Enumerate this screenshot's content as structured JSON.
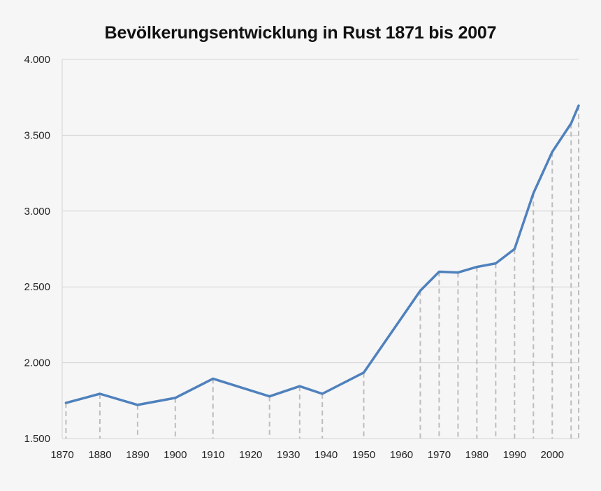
{
  "chart_data": {
    "type": "line",
    "title": "Bevölkerungsentwicklung in Rust 1871 bis 2007",
    "xlabel": "",
    "ylabel": "",
    "xlim": [
      1870,
      2007
    ],
    "ylim": [
      1500,
      4000
    ],
    "x_ticks": [
      1870,
      1880,
      1890,
      1900,
      1910,
      1920,
      1930,
      1940,
      1950,
      1960,
      1970,
      1980,
      1990,
      2000
    ],
    "x_tick_labels": [
      "1870",
      "1880",
      "1890",
      "1900",
      "1910",
      "1920",
      "1930",
      "1940",
      "1950",
      "1960",
      "1970",
      "1980",
      "1990",
      "2000"
    ],
    "y_ticks": [
      1500,
      2000,
      2500,
      3000,
      3500,
      4000
    ],
    "y_tick_labels": [
      "1.500",
      "2.000",
      "2.500",
      "3.000",
      "3.500",
      "4.000"
    ],
    "grid": "horizontal",
    "drop_lines": true,
    "series": [
      {
        "color": "#4f81bd",
        "points": [
          {
            "x": 1871,
            "y": 1735
          },
          {
            "x": 1880,
            "y": 1795
          },
          {
            "x": 1890,
            "y": 1722
          },
          {
            "x": 1900,
            "y": 1768
          },
          {
            "x": 1910,
            "y": 1895
          },
          {
            "x": 1925,
            "y": 1778
          },
          {
            "x": 1933,
            "y": 1845
          },
          {
            "x": 1939,
            "y": 1795
          },
          {
            "x": 1950,
            "y": 1935
          },
          {
            "x": 1965,
            "y": 2475
          },
          {
            "x": 1970,
            "y": 2600
          },
          {
            "x": 1975,
            "y": 2595
          },
          {
            "x": 1980,
            "y": 2632
          },
          {
            "x": 1985,
            "y": 2655
          },
          {
            "x": 1990,
            "y": 2750
          },
          {
            "x": 1995,
            "y": 3118
          },
          {
            "x": 2000,
            "y": 3390
          },
          {
            "x": 2005,
            "y": 3578
          },
          {
            "x": 2007,
            "y": 3695
          }
        ]
      }
    ]
  }
}
